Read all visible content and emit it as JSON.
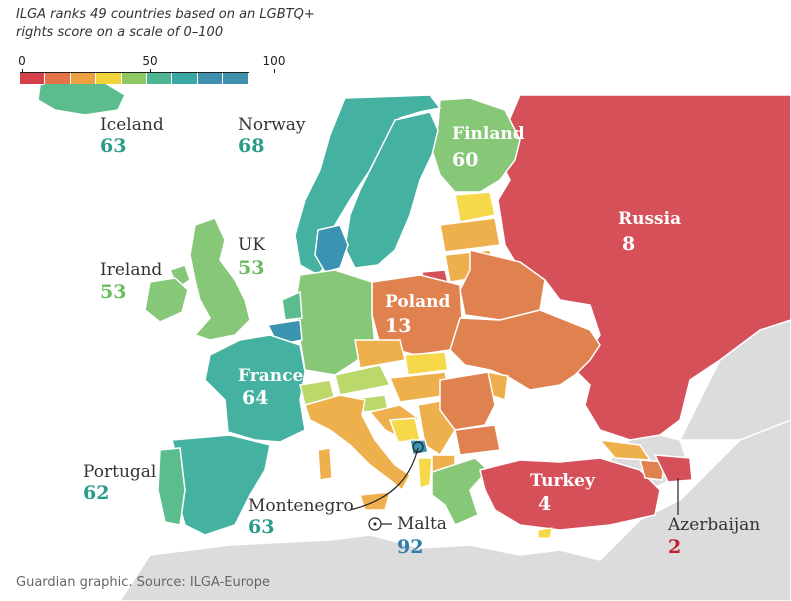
{
  "header": {
    "title_line1": "ILGA ranks 49 countries based on an LGBTQ+",
    "title_line2": "rights score on a scale of 0–100"
  },
  "legend": {
    "min_label": "0",
    "mid_label": "50",
    "max_label": "100",
    "colors": [
      "#d6404b",
      "#e5734a",
      "#eda040",
      "#f0d33a",
      "#8fc964",
      "#4db592",
      "#3aa8a4",
      "#3f8fad",
      "#3f8fad"
    ]
  },
  "colors": {
    "sea": "#ffffff",
    "non_ilga": "#dcdcdc",
    "deep_red": "#d6505a",
    "orange": "#e0824f",
    "light_orange": "#eeb04c",
    "yellow": "#f6d94a",
    "light_green": "#bcd86a",
    "green": "#86c778",
    "teal_green": "#5bbd8d",
    "teal": "#45b1a0",
    "blue": "#3a93b0",
    "label_teal": "#2a9c8a",
    "label_green": "#6bbb61",
    "label_blue": "#2e7ea5",
    "label_red": "#c0222d",
    "label_dark": "#333333"
  },
  "countries": [
    {
      "name": "Iceland",
      "score": "63"
    },
    {
      "name": "Norway",
      "score": "68"
    },
    {
      "name": "Finland",
      "score": "60"
    },
    {
      "name": "Russia",
      "score": "8"
    },
    {
      "name": "UK",
      "score": "53"
    },
    {
      "name": "Ireland",
      "score": "53"
    },
    {
      "name": "Poland",
      "score": "13"
    },
    {
      "name": "France",
      "score": "64"
    },
    {
      "name": "Portugal",
      "score": "62"
    },
    {
      "name": "Turkey",
      "score": "4"
    },
    {
      "name": "Montenegro",
      "score": "63"
    },
    {
      "name": "Malta",
      "score": "92"
    },
    {
      "name": "Azerbaijan",
      "score": "2"
    }
  ],
  "footer": {
    "credit": "Guardian graphic. Source: ILGA-Europe"
  }
}
